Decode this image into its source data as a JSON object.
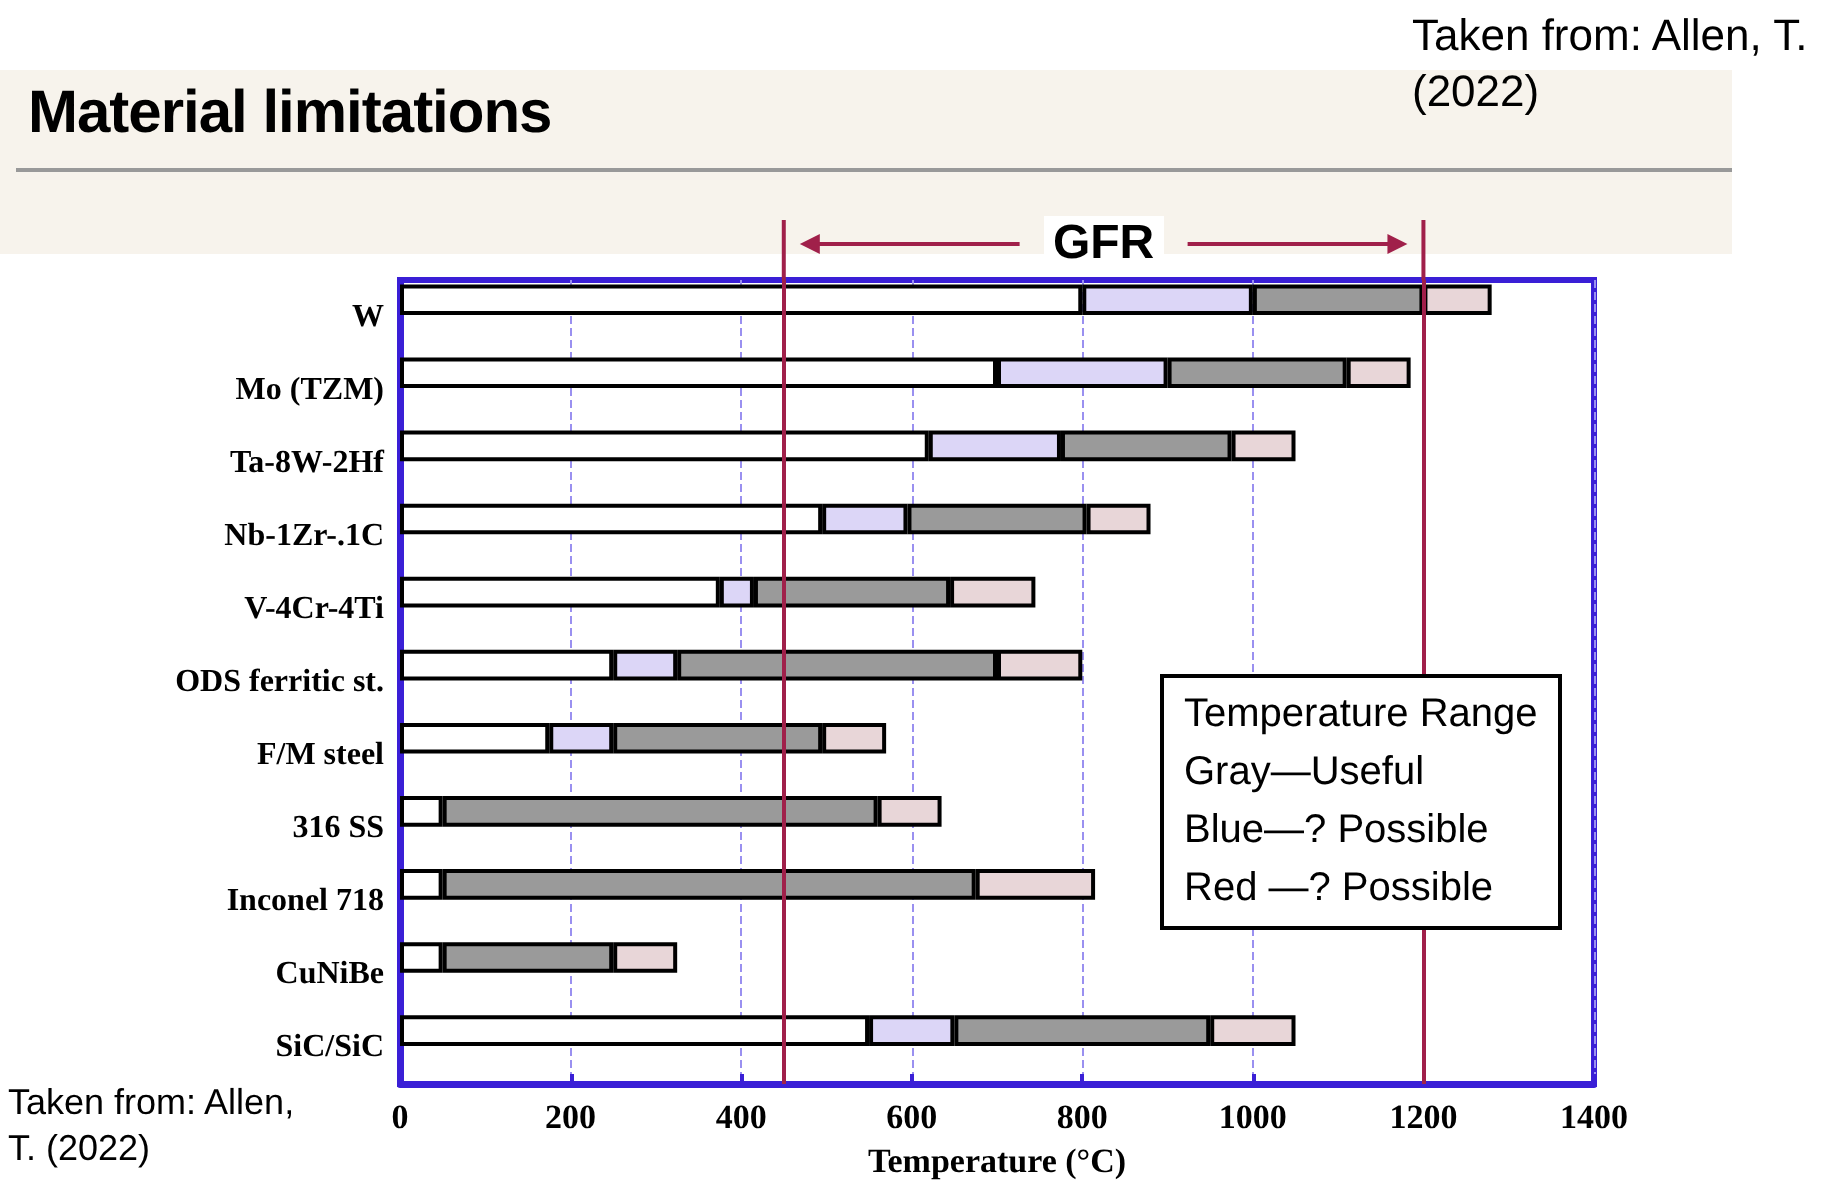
{
  "chart_data": {
    "type": "bar",
    "orientation": "horizontal",
    "stacked": true,
    "title": "Material limitations",
    "xlabel": "Temperature (°C)",
    "categories": [
      "W",
      "Mo (TZM)",
      "Ta-8W-2Hf",
      "Nb-1Zr-.1C",
      "V-4Cr-4Ti",
      "ODS ferritic st.",
      "F/M steel",
      "316 SS",
      "Inconel 718",
      "CuNiBe",
      "SiC/SiC"
    ],
    "series": [
      {
        "color": "#ffffff",
        "values": [
          800,
          700,
          620,
          495,
          375,
          250,
          175,
          50,
          50,
          50,
          550
        ]
      },
      {
        "color": "#dcd6f7",
        "values": [
          200,
          200,
          155,
          100,
          40,
          75,
          75,
          null,
          null,
          null,
          100
        ]
      },
      {
        "color": "#9a9a9a",
        "values": [
          200,
          210,
          200,
          210,
          230,
          375,
          245,
          510,
          625,
          200,
          300
        ]
      },
      {
        "color": "#e8d6d8",
        "values": [
          80,
          75,
          75,
          75,
          100,
          100,
          75,
          75,
          140,
          75,
          100
        ]
      }
    ],
    "xlim": [
      0,
      1400
    ],
    "xticks": [
      0,
      200,
      400,
      600,
      800,
      1000,
      1200,
      1400
    ],
    "grid": "x",
    "ref_lines": [
      {
        "axis": "x",
        "value": 450,
        "color": "#a0204a"
      },
      {
        "axis": "x",
        "value": 1200,
        "color": "#a0204a"
      }
    ],
    "annotations": [
      "GFR",
      "Taken from: Allen, T. (2022)",
      "Taken from: Allen, T. (2022)",
      "Temperature Range",
      "Gray—Useful",
      "Blue—? Possible",
      "Red —? Possible"
    ]
  }
}
